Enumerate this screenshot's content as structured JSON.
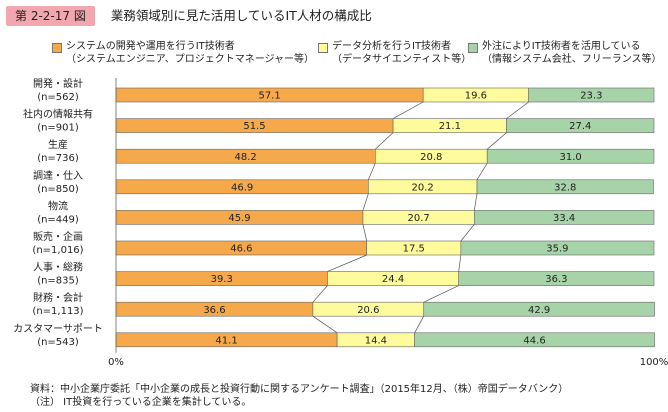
{
  "figure": {
    "badge": "第 2-2-17 図",
    "title": "業務領域別に見た活用しているIT人材の構成比"
  },
  "legend": [
    {
      "line1": "システムの開発や運用を行うIT技術者",
      "line2": "（システムエンジニア、プロジェクトマネージャー等）",
      "color": "#f5a94a"
    },
    {
      "line1": "データ分析を行うIT技術者",
      "line2": "（データサイエンティスト等）",
      "color": "#fdfb9b"
    },
    {
      "line1": "外注によりIT技術者を活用している",
      "line2": "（情報システム会社、フリーランス等）",
      "color": "#a7d3a8"
    }
  ],
  "chart_data": {
    "type": "bar",
    "orientation": "horizontal",
    "stacked": true,
    "percent": true,
    "categories": [
      "開発・設計",
      "社内の情報共有",
      "生産",
      "調達・仕入",
      "物流",
      "販売・企画",
      "人事・総務",
      "財務・会計",
      "カスタマーサポート"
    ],
    "sample_sizes": [
      "(n=562)",
      "(n=901)",
      "(n=736)",
      "(n=850)",
      "(n=449)",
      "(n=1,016)",
      "(n=835)",
      "(n=1,113)",
      "(n=543)"
    ],
    "series": [
      {
        "name": "システムの開発や運用を行うIT技術者（システムエンジニア、プロジェクトマネージャー等）",
        "color": "#f5a94a",
        "values": [
          57.1,
          51.5,
          48.2,
          46.9,
          45.9,
          46.6,
          39.3,
          36.6,
          41.1
        ]
      },
      {
        "name": "データ分析を行うIT技術者（データサイエンティスト等）",
        "color": "#fdfb9b",
        "values": [
          19.6,
          21.1,
          20.8,
          20.2,
          20.7,
          17.5,
          24.4,
          20.6,
          14.4
        ]
      },
      {
        "name": "外注によりIT技術者を活用している（情報システム会社、フリーランス等）",
        "color": "#a7d3a8",
        "values": [
          23.3,
          27.4,
          31.0,
          32.8,
          33.4,
          35.9,
          36.3,
          42.9,
          44.6
        ]
      }
    ],
    "value_labels": [
      [
        "57.1",
        "51.5",
        "48.2",
        "46.9",
        "45.9",
        "46.6",
        "39.3",
        "36.6",
        "41.1"
      ],
      [
        "19.6",
        "21.1",
        "20.8",
        "20.2",
        "20.7",
        "17.5",
        "24.4",
        "20.6",
        "14.4"
      ],
      [
        "23.3",
        "27.4",
        "31.0",
        "32.8",
        "33.4",
        "35.9",
        "36.3",
        "42.9",
        "44.6"
      ]
    ],
    "xlim": [
      0,
      100
    ],
    "x_ticks": [
      {
        "value": 0,
        "label": "0%"
      },
      {
        "value": 100,
        "label": "100%"
      }
    ],
    "connector_lines": true,
    "grid": false
  },
  "footnotes": [
    "資料：中小企業庁委託「中小企業の成長と投資行動に関するアンケート調査」（2015年12月、（株）帝国データバンク）",
    "（注） IT投資を行っている企業を集計している。"
  ]
}
